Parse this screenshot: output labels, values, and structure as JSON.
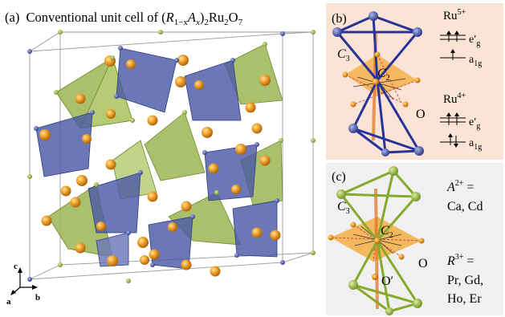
{
  "panel_a": {
    "label": "(a)",
    "title_prefix": "Conventional unit cell of (",
    "title_R": "R",
    "title_sub1": "1−x",
    "title_A": "A",
    "title_sub2": "x",
    "title_rest1": ")",
    "title_sub3": "2",
    "title_rest2": "Ru",
    "title_sub4": "2",
    "title_rest3": "O",
    "title_sub5": "7",
    "axis_c": "c",
    "axis_a": "a",
    "axis_b": "b"
  },
  "panel_b": {
    "label": "(b)",
    "c3": "C",
    "c3_sub": "3",
    "c2": "C",
    "c2_sub": "2",
    "oxygen": "O",
    "ru5": "Ru",
    "ru5_sup": "5+",
    "ru4": "Ru",
    "ru4_sup": "4+",
    "eg": "e′",
    "eg_sub": "g",
    "a1g": "a",
    "a1g_sub": "1g"
  },
  "panel_c": {
    "label": "(c)",
    "c3": "C",
    "c3_sub": "3",
    "c2": "C",
    "c2_sub": "2",
    "oxygen": "O",
    "oxygen_prime": "O′",
    "a_ion": "A",
    "a_ion_sup": "2+",
    "a_eq": " =",
    "a_list": "Ca, Cd",
    "r_ion": "R",
    "r_ion_sup": "3+",
    "r_eq": " =",
    "r_list1": "Pr, Gd,",
    "r_list2": "Ho, Er"
  },
  "colors": {
    "ru_tetra": "#4b5aa0",
    "r_tetra": "#95b34a",
    "o_atom": "#e89a2a",
    "panel_b_bg": "#fbe4d6",
    "panel_c_bg": "#f0f0f0"
  }
}
